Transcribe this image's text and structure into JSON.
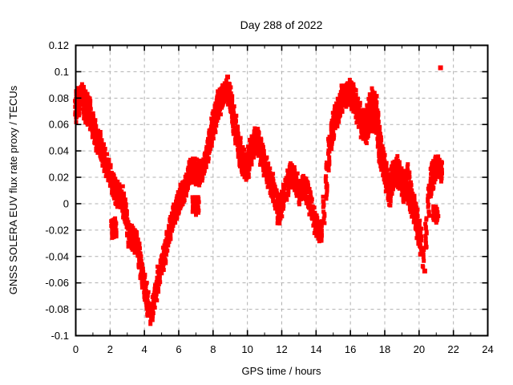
{
  "colors": {
    "series": "#ff0000",
    "grid": "#b0b0b0",
    "border": "#000000",
    "text": "#000000",
    "background": "#ffffff"
  },
  "chart_data": {
    "type": "scatter",
    "title": "Day 288 of 2022",
    "xlabel": "GPS time / hours",
    "ylabel": "GNSS SOLERA EUV flux rate proxy / TECUs",
    "xlim": [
      0,
      24
    ],
    "ylim": [
      -0.1,
      0.12
    ],
    "grid": true,
    "legend": "none",
    "x_ticks": [
      0,
      2,
      4,
      6,
      8,
      10,
      12,
      14,
      16,
      18,
      20,
      22,
      24
    ],
    "x_tick_labels": [
      "0",
      "2",
      "4",
      "6",
      "8",
      "10",
      "12",
      "14",
      "16",
      "18",
      "20",
      "22",
      "24"
    ],
    "x_minor_ticks": [
      1,
      3,
      5,
      7,
      9,
      11,
      13,
      15,
      17,
      19,
      21,
      23
    ],
    "y_ticks": [
      0.12,
      0.1,
      0.08,
      0.06,
      0.04,
      0.02,
      0,
      -0.02,
      -0.04,
      -0.06,
      -0.08,
      -0.1
    ],
    "y_tick_labels": [
      "0.12",
      "0.1",
      "0.08",
      "0.06",
      "0.04",
      "0.02",
      "0",
      "-0.02",
      "-0.04",
      "-0.06",
      "-0.08",
      "-0.1"
    ],
    "series": [
      {
        "name": "GNSS SOLERA EUV flux rate proxy",
        "marker": "filled-square",
        "marker_size": 5,
        "color": "#ff0000",
        "band_points": [
          [
            0.0,
            0.074,
            0.011
          ],
          [
            0.2,
            0.078,
            0.01
          ],
          [
            0.35,
            0.08,
            0.01
          ],
          [
            0.5,
            0.076,
            0.011
          ],
          [
            0.7,
            0.071,
            0.012
          ],
          [
            0.85,
            0.068,
            0.012
          ],
          [
            1.0,
            0.058,
            0.009
          ],
          [
            1.2,
            0.05,
            0.009
          ],
          [
            1.4,
            0.044,
            0.009
          ],
          [
            1.6,
            0.037,
            0.008
          ],
          [
            1.8,
            0.03,
            0.008
          ],
          [
            2.0,
            0.021,
            0.008
          ],
          [
            2.2,
            0.013,
            0.009
          ],
          [
            2.45,
            0.006,
            0.009
          ],
          [
            2.7,
            0.004,
            0.009
          ],
          [
            2.9,
            -0.006,
            0.01
          ],
          [
            3.1,
            -0.024,
            0.009
          ],
          [
            3.35,
            -0.027,
            0.008
          ],
          [
            3.6,
            -0.031,
            0.009
          ],
          [
            3.8,
            -0.048,
            0.009
          ],
          [
            4.0,
            -0.063,
            0.009
          ],
          [
            4.2,
            -0.076,
            0.01
          ],
          [
            4.35,
            -0.083,
            0.008
          ],
          [
            4.5,
            -0.078,
            0.009
          ],
          [
            4.7,
            -0.064,
            0.009
          ],
          [
            4.9,
            -0.051,
            0.008
          ],
          [
            5.2,
            -0.036,
            0.008
          ],
          [
            5.5,
            -0.018,
            0.008
          ],
          [
            5.8,
            -0.006,
            0.008
          ],
          [
            6.1,
            0.005,
            0.008
          ],
          [
            6.4,
            0.013,
            0.008
          ],
          [
            6.65,
            0.024,
            0.008
          ],
          [
            6.9,
            0.025,
            0.009
          ],
          [
            7.15,
            0.023,
            0.009
          ],
          [
            7.4,
            0.026,
            0.008
          ],
          [
            7.6,
            0.035,
            0.008
          ],
          [
            7.8,
            0.047,
            0.009
          ],
          [
            8.0,
            0.06,
            0.011
          ],
          [
            8.2,
            0.07,
            0.011
          ],
          [
            8.4,
            0.078,
            0.009
          ],
          [
            8.6,
            0.083,
            0.008
          ],
          [
            8.8,
            0.086,
            0.007
          ],
          [
            9.0,
            0.08,
            0.01
          ],
          [
            9.2,
            0.064,
            0.01
          ],
          [
            9.45,
            0.046,
            0.011
          ],
          [
            9.7,
            0.032,
            0.011
          ],
          [
            9.95,
            0.027,
            0.01
          ],
          [
            10.15,
            0.036,
            0.011
          ],
          [
            10.4,
            0.046,
            0.01
          ],
          [
            10.65,
            0.046,
            0.01
          ],
          [
            10.9,
            0.035,
            0.01
          ],
          [
            11.1,
            0.025,
            0.01
          ],
          [
            11.35,
            0.017,
            0.01
          ],
          [
            11.6,
            0.006,
            0.009
          ],
          [
            11.85,
            -0.001,
            0.008
          ],
          [
            12.0,
            0.0,
            0.009
          ],
          [
            12.25,
            0.011,
            0.008
          ],
          [
            12.5,
            0.021,
            0.009
          ],
          [
            12.75,
            0.019,
            0.009
          ],
          [
            13.0,
            0.009,
            0.008
          ],
          [
            13.3,
            0.012,
            0.009
          ],
          [
            13.55,
            0.006,
            0.009
          ],
          [
            13.75,
            -0.004,
            0.008
          ],
          [
            13.95,
            -0.014,
            0.008
          ],
          [
            14.15,
            -0.021,
            0.007
          ],
          [
            14.3,
            -0.02,
            0.008
          ],
          [
            14.45,
            -0.005,
            0.011
          ],
          [
            14.6,
            0.018,
            0.013
          ],
          [
            14.75,
            0.038,
            0.012
          ],
          [
            14.9,
            0.053,
            0.011
          ],
          [
            15.1,
            0.064,
            0.009
          ],
          [
            15.3,
            0.071,
            0.009
          ],
          [
            15.5,
            0.079,
            0.009
          ],
          [
            15.75,
            0.083,
            0.008
          ],
          [
            16.0,
            0.084,
            0.009
          ],
          [
            16.2,
            0.08,
            0.01
          ],
          [
            16.4,
            0.07,
            0.01
          ],
          [
            16.65,
            0.061,
            0.011
          ],
          [
            16.9,
            0.058,
            0.012
          ],
          [
            17.1,
            0.068,
            0.014
          ],
          [
            17.25,
            0.072,
            0.016
          ],
          [
            17.5,
            0.067,
            0.014
          ],
          [
            17.7,
            0.045,
            0.014
          ],
          [
            17.9,
            0.032,
            0.011
          ],
          [
            18.1,
            0.02,
            0.011
          ],
          [
            18.3,
            0.011,
            0.012
          ],
          [
            18.5,
            0.021,
            0.01
          ],
          [
            18.7,
            0.025,
            0.01
          ],
          [
            18.9,
            0.021,
            0.01
          ],
          [
            19.1,
            0.012,
            0.011
          ],
          [
            19.3,
            0.018,
            0.011
          ],
          [
            19.5,
            0.005,
            0.012
          ],
          [
            19.7,
            -0.005,
            0.01
          ],
          [
            19.9,
            -0.015,
            0.01
          ],
          [
            20.1,
            -0.029,
            0.01
          ],
          [
            20.25,
            -0.04,
            0.008
          ],
          [
            20.4,
            -0.022,
            0.012
          ],
          [
            20.55,
            0.002,
            0.012
          ],
          [
            20.7,
            0.018,
            0.011
          ],
          [
            20.9,
            0.026,
            0.009
          ],
          [
            21.1,
            0.028,
            0.008
          ],
          [
            21.3,
            0.024,
            0.007
          ]
        ],
        "clusters": [
          [
            2.1,
            2.45,
            -0.018,
            0.007
          ],
          [
            6.8,
            7.25,
            -0.001,
            0.006
          ],
          [
            11.8,
            12.0,
            -0.011,
            0.004
          ],
          [
            20.85,
            21.2,
            -0.008,
            0.005
          ]
        ],
        "outliers": [
          [
            21.25,
            0.103
          ],
          [
            8.85,
            0.096
          ],
          [
            20.33,
            -0.051
          ]
        ]
      }
    ]
  }
}
